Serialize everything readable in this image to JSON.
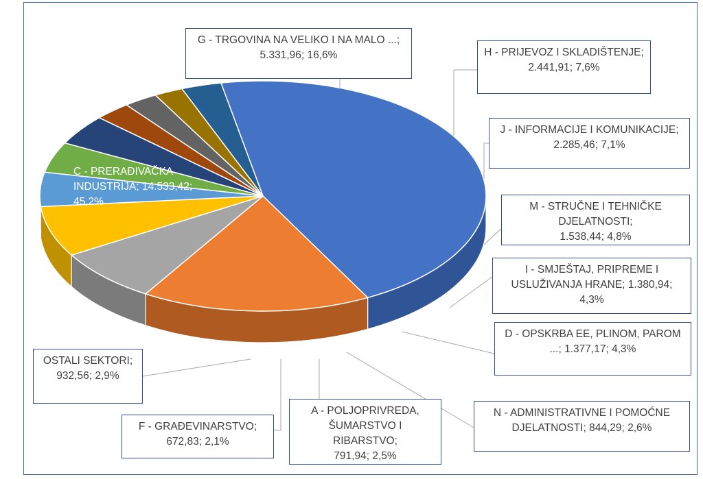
{
  "chart_data": {
    "type": "pie",
    "title": "",
    "series": [
      {
        "slices": [
          {
            "label": "C - PRERAĐIVAČKA INDUSTRIJA",
            "value_text": "14.533,42",
            "percent_text": "45,2%",
            "value": 14533.42,
            "percent": 45.2,
            "color": "#4472c4",
            "side": "#2f5597"
          },
          {
            "label": "G - TRGOVINA NA VELIKO I NA MALO ...",
            "value_text": "5.331,96",
            "percent_text": "16,6%",
            "value": 5331.96,
            "percent": 16.6,
            "color": "#ed7d31",
            "side": "#ae5a21"
          },
          {
            "label": "H - PRIJEVOZ I SKLADIŠTENJE",
            "value_text": "2.441,91",
            "percent_text": "7,6%",
            "value": 2441.91,
            "percent": 7.6,
            "color": "#a5a5a5",
            "side": "#7b7b7b"
          },
          {
            "label": "J - INFORMACIJE I KOMUNIKACIJE",
            "value_text": "2.285,46",
            "percent_text": "7,1%",
            "value": 2285.46,
            "percent": 7.1,
            "color": "#ffc000",
            "side": "#bf9000"
          },
          {
            "label": "M - STRUČNE I TEHNIČKE DJELATNOSTI",
            "value_text": "1.538,44",
            "percent_text": "4,8%",
            "value": 1538.44,
            "percent": 4.8,
            "color": "#5b9bd5",
            "side": "#1f3864"
          },
          {
            "label": "I - SMJEŠTAJ, PRIPREME I USLUŽIVANJA HRANE",
            "value_text": "1.380,94",
            "percent_text": "4,3%",
            "value": 1380.94,
            "percent": 4.3,
            "color": "#70ad47",
            "side": "#2e4b1c"
          },
          {
            "label": "D - OPSKRBA EE, PLINOM, PAROM ...",
            "value_text": "1.377,17",
            "percent_text": "4,3%",
            "value": 1377.17,
            "percent": 4.3,
            "color": "#264478",
            "side": "#0f1b33"
          },
          {
            "label": "N - ADMINISTRATIVNE I POMOĆNE DJELATNOSTI",
            "value_text": "844,29",
            "percent_text": "2,6%",
            "value": 844.29,
            "percent": 2.6,
            "color": "#9e480e",
            "side": "#4a1f05"
          },
          {
            "label": "A - POLJOPRIVREDA, ŠUMARSTVO I RIBARSTVO",
            "value_text": "791,94",
            "percent_text": "2,5%",
            "value": 791.94,
            "percent": 2.5,
            "color": "#636363",
            "side": "#2b2b2b"
          },
          {
            "label": "F - GRAĐEVINARSTVO",
            "value_text": "672,83",
            "percent_text": "2,1%",
            "value": 672.83,
            "percent": 2.1,
            "color": "#997300",
            "side": "#5c4500"
          },
          {
            "label": "OSTALI SEKTORI",
            "value_text": "932,56",
            "percent_text": "2,9%",
            "value": 932.56,
            "percent": 2.9,
            "color": "#255e91",
            "side": "#16385a"
          }
        ]
      }
    ],
    "legend": "none",
    "data_labels": "callouts"
  }
}
